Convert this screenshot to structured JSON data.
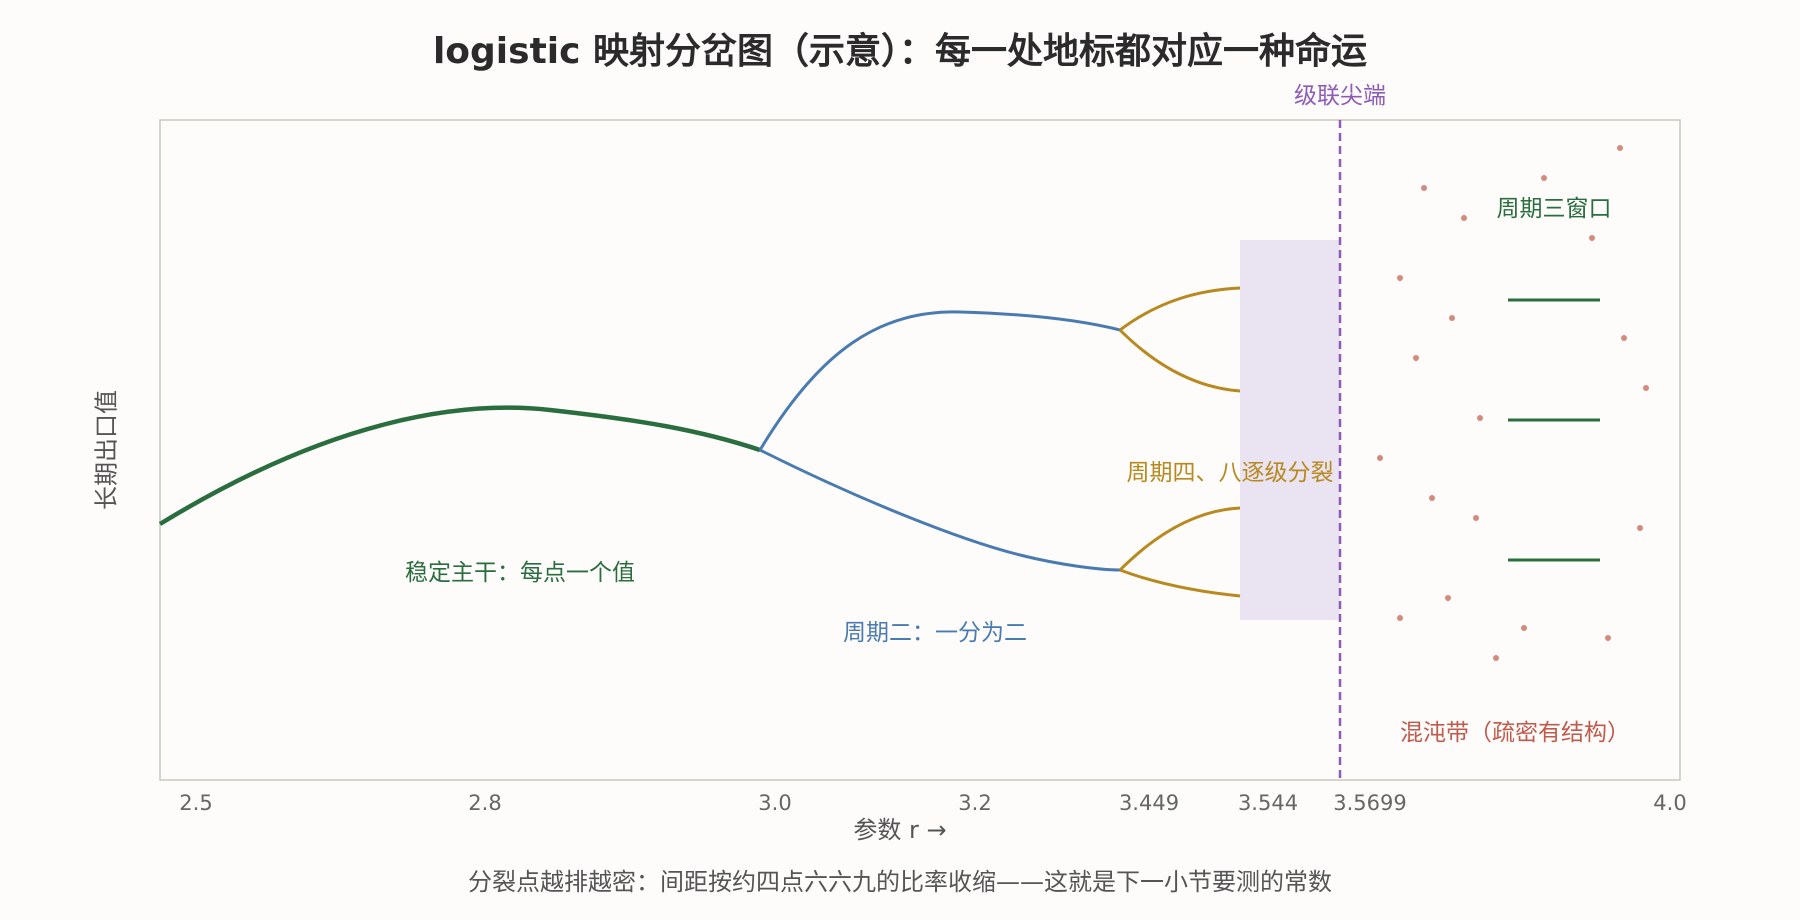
{
  "title": "logistic 映射分岔图（示意）：每一处地标都对应一种命运",
  "y_axis_label": "长期出口值",
  "x_axis_label": "参数 r →",
  "caption": "分裂点越排越密：间距按约四点六六九的比率收缩——这就是下一小节要测的常数",
  "x_ticks": [
    "2.5",
    "2.8",
    "3.0",
    "3.2",
    "3.449",
    "3.544",
    "3.5699",
    "4.0"
  ],
  "annotations": {
    "stable": "稳定主干：每点一个值",
    "period2": "周期二：一分为二",
    "period48": "周期四、八逐级分裂",
    "cascade_tip": "级联尖端",
    "period3": "周期三窗口",
    "chaos": "混沌带（疏密有结构）"
  },
  "colors": {
    "stable": "#2a6e3f",
    "period2": "#4a7bb0",
    "period48": "#b8891f",
    "cascade": "#8e5bb6",
    "window_band": "#e9e3f2",
    "chaos": "#d38a80",
    "period3": "#2a6e3f",
    "frame": "#c8c8c0"
  }
}
